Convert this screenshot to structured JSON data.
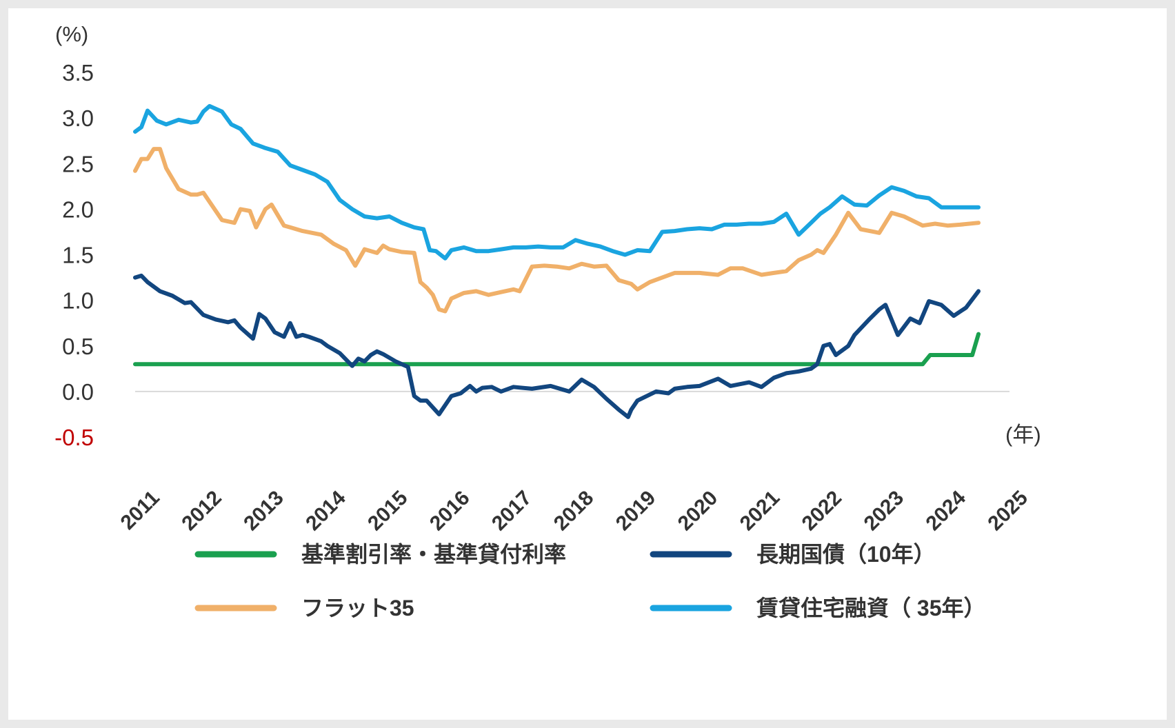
{
  "chart_data": {
    "type": "line",
    "title": "",
    "ylabel": "(%)",
    "xlabel": "(年)",
    "ylim": [
      -0.5,
      3.5
    ],
    "y_ticks": [
      "3.5",
      "3.0",
      "2.5",
      "2.0",
      "1.5",
      "1.0",
      "0.5",
      "0.0",
      "-0.5"
    ],
    "x_ticks": [
      "2011",
      "2012",
      "2013",
      "2014",
      "2015",
      "2016",
      "2017",
      "2018",
      "2019",
      "2020",
      "2021",
      "2022",
      "2023",
      "2024",
      "2025"
    ],
    "xlim": [
      2010.9,
      2025.0
    ],
    "grid": false,
    "legend_position": "bottom",
    "series": [
      {
        "name": "基準割引率・基準貸付利率",
        "color": "#1aa04f",
        "x": [
          2010.9,
          2023.6,
          2023.72,
          2024.4,
          2024.5
        ],
        "y": [
          0.3,
          0.3,
          0.4,
          0.4,
          0.63
        ]
      },
      {
        "name": "長期国債（10年）",
        "color": "#12467f",
        "x": [
          2010.9,
          2011.0,
          2011.1,
          2011.3,
          2011.5,
          2011.7,
          2011.8,
          2012.0,
          2012.2,
          2012.4,
          2012.5,
          2012.6,
          2012.8,
          2012.9,
          2013.0,
          2013.15,
          2013.3,
          2013.4,
          2013.5,
          2013.6,
          2013.7,
          2013.9,
          2014.0,
          2014.2,
          2014.4,
          2014.5,
          2014.6,
          2014.7,
          2014.8,
          2014.9,
          2015.1,
          2015.3,
          2015.4,
          2015.5,
          2015.6,
          2015.8,
          2016.0,
          2016.15,
          2016.3,
          2016.4,
          2016.5,
          2016.65,
          2016.8,
          2017.0,
          2017.3,
          2017.6,
          2017.9,
          2018.1,
          2018.3,
          2018.5,
          2018.7,
          2018.85,
          2018.9,
          2019.0,
          2019.3,
          2019.5,
          2019.6,
          2019.8,
          2020.0,
          2020.3,
          2020.5,
          2020.8,
          2021.0,
          2021.2,
          2021.4,
          2021.6,
          2021.8,
          2021.9,
          2022.0,
          2022.1,
          2022.2,
          2022.4,
          2022.5,
          2022.75,
          2022.9,
          2023.0,
          2023.2,
          2023.4,
          2023.55,
          2023.7,
          2023.9,
          2024.1,
          2024.3,
          2024.5
        ],
        "y": [
          1.25,
          1.27,
          1.2,
          1.1,
          1.05,
          0.97,
          0.98,
          0.84,
          0.79,
          0.76,
          0.78,
          0.7,
          0.58,
          0.85,
          0.8,
          0.65,
          0.6,
          0.75,
          0.6,
          0.62,
          0.6,
          0.55,
          0.5,
          0.42,
          0.28,
          0.36,
          0.33,
          0.4,
          0.44,
          0.41,
          0.33,
          0.27,
          -0.05,
          -0.1,
          -0.1,
          -0.25,
          -0.05,
          -0.02,
          0.06,
          0.0,
          0.04,
          0.05,
          0.0,
          0.05,
          0.03,
          0.06,
          0.0,
          0.13,
          0.05,
          -0.08,
          -0.2,
          -0.28,
          -0.2,
          -0.1,
          0.0,
          -0.02,
          0.03,
          0.05,
          0.06,
          0.14,
          0.06,
          0.1,
          0.05,
          0.15,
          0.2,
          0.22,
          0.25,
          0.3,
          0.5,
          0.52,
          0.4,
          0.5,
          0.62,
          0.8,
          0.9,
          0.95,
          0.62,
          0.8,
          0.75,
          0.99,
          0.95,
          0.83,
          0.92,
          1.1
        ]
      },
      {
        "name": "フラット35",
        "color": "#f0b069",
        "x": [
          2010.9,
          2011.0,
          2011.1,
          2011.2,
          2011.3,
          2011.4,
          2011.6,
          2011.8,
          2011.9,
          2012.0,
          2012.3,
          2012.5,
          2012.6,
          2012.75,
          2012.85,
          2013.0,
          2013.1,
          2013.3,
          2013.4,
          2013.6,
          2013.9,
          2014.1,
          2014.3,
          2014.45,
          2014.6,
          2014.8,
          2014.9,
          2015.0,
          2015.2,
          2015.4,
          2015.5,
          2015.6,
          2015.7,
          2015.8,
          2015.9,
          2016.0,
          2016.2,
          2016.4,
          2016.6,
          2016.8,
          2017.0,
          2017.1,
          2017.3,
          2017.5,
          2017.7,
          2017.9,
          2018.1,
          2018.3,
          2018.5,
          2018.7,
          2018.9,
          2019.0,
          2019.2,
          2019.4,
          2019.6,
          2020.0,
          2020.3,
          2020.5,
          2020.7,
          2021.0,
          2021.2,
          2021.4,
          2021.6,
          2021.8,
          2021.9,
          2022.0,
          2022.2,
          2022.4,
          2022.6,
          2022.9,
          2023.1,
          2023.3,
          2023.6,
          2023.8,
          2024.0,
          2024.2,
          2024.5
        ],
        "y": [
          2.42,
          2.55,
          2.55,
          2.66,
          2.66,
          2.45,
          2.22,
          2.16,
          2.16,
          2.18,
          1.88,
          1.85,
          2.0,
          1.98,
          1.8,
          2.0,
          2.05,
          1.82,
          1.8,
          1.76,
          1.72,
          1.62,
          1.55,
          1.38,
          1.56,
          1.52,
          1.6,
          1.56,
          1.53,
          1.52,
          1.2,
          1.14,
          1.06,
          0.9,
          0.88,
          1.02,
          1.08,
          1.1,
          1.06,
          1.09,
          1.12,
          1.1,
          1.37,
          1.38,
          1.37,
          1.35,
          1.4,
          1.37,
          1.38,
          1.22,
          1.18,
          1.12,
          1.2,
          1.25,
          1.3,
          1.3,
          1.28,
          1.35,
          1.35,
          1.28,
          1.3,
          1.32,
          1.44,
          1.5,
          1.55,
          1.52,
          1.72,
          1.96,
          1.78,
          1.74,
          1.96,
          1.92,
          1.82,
          1.84,
          1.82,
          1.83,
          1.85
        ]
      },
      {
        "name": "賃貸住宅融資（ 35年）",
        "color": "#1aa4e0",
        "x": [
          2010.9,
          2011.0,
          2011.1,
          2011.25,
          2011.4,
          2011.6,
          2011.8,
          2011.9,
          2012.0,
          2012.1,
          2012.3,
          2012.45,
          2012.6,
          2012.8,
          2013.0,
          2013.2,
          2013.4,
          2013.6,
          2013.8,
          2014.0,
          2014.2,
          2014.4,
          2014.6,
          2014.8,
          2015.0,
          2015.2,
          2015.4,
          2015.55,
          2015.65,
          2015.75,
          2015.9,
          2016.0,
          2016.2,
          2016.4,
          2016.6,
          2016.8,
          2017.0,
          2017.2,
          2017.4,
          2017.6,
          2017.8,
          2018.0,
          2018.2,
          2018.4,
          2018.6,
          2018.8,
          2019.0,
          2019.2,
          2019.4,
          2019.6,
          2019.8,
          2020.0,
          2020.2,
          2020.4,
          2020.6,
          2020.8,
          2021.0,
          2021.2,
          2021.4,
          2021.6,
          2021.8,
          2021.95,
          2022.1,
          2022.3,
          2022.5,
          2022.7,
          2022.9,
          2023.1,
          2023.3,
          2023.5,
          2023.7,
          2023.9,
          2024.1,
          2024.3,
          2024.5
        ],
        "y": [
          2.85,
          2.9,
          3.08,
          2.97,
          2.93,
          2.98,
          2.95,
          2.96,
          3.07,
          3.13,
          3.07,
          2.93,
          2.88,
          2.72,
          2.67,
          2.63,
          2.48,
          2.43,
          2.38,
          2.3,
          2.1,
          2.0,
          1.92,
          1.9,
          1.92,
          1.85,
          1.8,
          1.78,
          1.55,
          1.54,
          1.46,
          1.55,
          1.58,
          1.54,
          1.54,
          1.56,
          1.58,
          1.58,
          1.59,
          1.58,
          1.58,
          1.66,
          1.62,
          1.59,
          1.54,
          1.5,
          1.55,
          1.54,
          1.75,
          1.76,
          1.78,
          1.79,
          1.78,
          1.83,
          1.83,
          1.84,
          1.84,
          1.86,
          1.95,
          1.72,
          1.85,
          1.95,
          2.02,
          2.14,
          2.05,
          2.04,
          2.15,
          2.24,
          2.2,
          2.14,
          2.12,
          2.02,
          2.02,
          2.02,
          2.02
        ]
      }
    ]
  }
}
